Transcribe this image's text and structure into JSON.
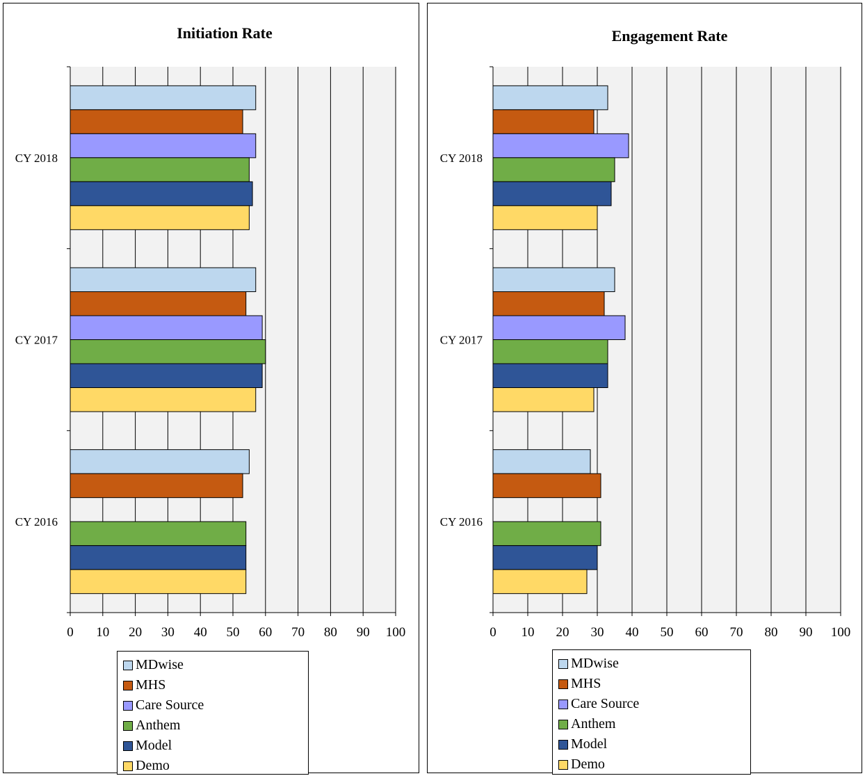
{
  "chart_data": [
    {
      "type": "bar",
      "orientation": "horizontal",
      "title": "Initiation Rate",
      "categories": [
        "CY 2018",
        "CY 2017",
        "CY 2016"
      ],
      "xlim": [
        0,
        100
      ],
      "xticks": [
        0,
        10,
        20,
        30,
        40,
        50,
        60,
        70,
        80,
        90,
        100
      ],
      "grid": true,
      "legend_position": "bottom",
      "series": [
        {
          "name": "MDwise",
          "color": "#bdd7ee",
          "values": [
            57,
            57,
            55
          ]
        },
        {
          "name": "MHS",
          "color": "#c55a11",
          "values": [
            53,
            54,
            53
          ]
        },
        {
          "name": "Care Source",
          "color": "#9999ff",
          "values": [
            57,
            59,
            null
          ]
        },
        {
          "name": "Anthem",
          "color": "#70ad47",
          "values": [
            55,
            60,
            54
          ]
        },
        {
          "name": "Model",
          "color": "#2f5597",
          "values": [
            56,
            59,
            54
          ]
        },
        {
          "name": "Demo",
          "color": "#ffd966",
          "values": [
            55,
            57,
            54
          ]
        }
      ]
    },
    {
      "type": "bar",
      "orientation": "horizontal",
      "title": "Engagement Rate",
      "categories": [
        "CY 2018",
        "CY 2017",
        "CY 2016"
      ],
      "xlim": [
        0,
        100
      ],
      "xticks": [
        0,
        10,
        20,
        30,
        40,
        50,
        60,
        70,
        80,
        90,
        100
      ],
      "grid": true,
      "legend_position": "bottom",
      "series": [
        {
          "name": "MDwise",
          "color": "#bdd7ee",
          "values": [
            33,
            35,
            28
          ]
        },
        {
          "name": "MHS",
          "color": "#c55a11",
          "values": [
            29,
            32,
            31
          ]
        },
        {
          "name": "Care Source",
          "color": "#9999ff",
          "values": [
            39,
            38,
            null
          ]
        },
        {
          "name": "Anthem",
          "color": "#70ad47",
          "values": [
            35,
            33,
            31
          ]
        },
        {
          "name": "Model",
          "color": "#2f5597",
          "values": [
            34,
            33,
            30
          ]
        },
        {
          "name": "Demo",
          "color": "#ffd966",
          "values": [
            30,
            29,
            27
          ]
        }
      ]
    }
  ],
  "colors": {
    "plot_background": "#f2f2f2",
    "gridline": "#000000"
  }
}
